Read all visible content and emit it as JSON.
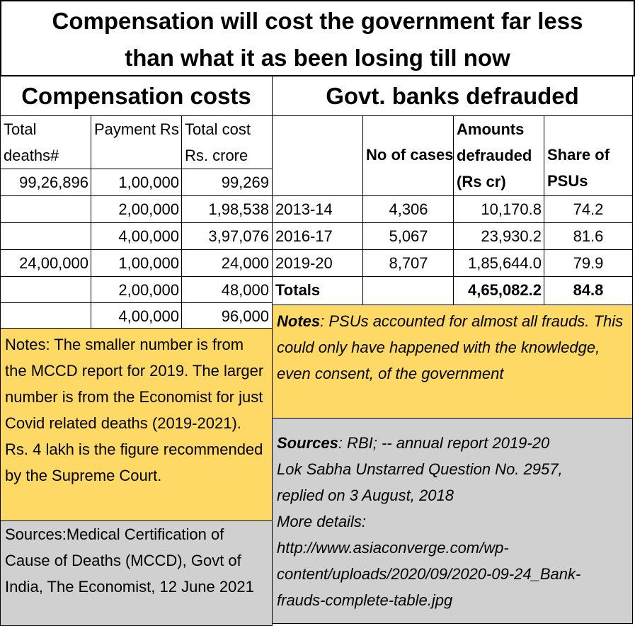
{
  "title": {
    "line1": "Compensation will cost the government far less",
    "line2": "than what it as been losing till now"
  },
  "compensation": {
    "title": "Compensation costs",
    "headers": [
      "Total deaths#",
      "Payment Rs",
      "Total cost Rs.  crore"
    ],
    "rows": [
      [
        "99,26,896",
        "1,00,000",
        "99,269"
      ],
      [
        "",
        "2,00,000",
        "1,98,538"
      ],
      [
        "",
        "4,00,000",
        "3,97,076"
      ],
      [
        "24,00,000",
        "1,00,000",
        "24,000"
      ],
      [
        "",
        "2,00,000",
        "48,000"
      ],
      [
        "",
        "4,00,000",
        "96,000"
      ]
    ],
    "notes": "Notes: The smaller number is from the MCCD report for 2019. The larger number is from the Economist for just Covid related deaths (2019-2021). Rs. 4 lakh is the figure recommended by the Supreme Court.",
    "sources": "Sources:Medical Certification of Cause of Deaths (MCCD), Govt of India, The Economist, 12 June 2021"
  },
  "banks": {
    "title": "Govt. banks defrauded",
    "headers": [
      "",
      "No of cases",
      "Amounts defrauded (Rs cr)",
      "Share of PSUs"
    ],
    "rows": [
      [
        "2013-14",
        "4,306",
        "10,170.8",
        "74.2"
      ],
      [
        "2016-17",
        "5,067",
        "23,930.2",
        "81.6"
      ],
      [
        "2019-20",
        "8,707",
        "1,85,644.0",
        "79.9"
      ]
    ],
    "totals": [
      "Totals",
      "",
      "4,65,082.2",
      "84.8"
    ],
    "notes_label": "Notes",
    "notes_text": ":  PSUs accounted for almost all frauds. This could only have happened with the knowledge, even consent, of the government",
    "sources_label": "Sources",
    "sources_text": ": RBI; -- annual report 2019-20",
    "sources_lines": [
      "Lok Sabha Unstarred Question No. 2957,",
      "replied on 3 August, 2018",
      "More details:",
      "http://www.asiaconverge.com/wp-",
      "content/uploads/2020/09/2020-09-24_Bank-",
      "frauds-complete-table.jpg"
    ]
  },
  "colors": {
    "notes_bg": "#ffd966",
    "sources_bg": "#d0d0d0",
    "border": "#000000"
  },
  "chart_data": {
    "type": "table",
    "tables": [
      {
        "title": "Compensation costs",
        "columns": [
          "Total deaths#",
          "Payment Rs",
          "Total cost Rs.  crore"
        ],
        "rows": [
          [
            "99,26,896",
            "1,00,000",
            "99,269"
          ],
          [
            "",
            "2,00,000",
            "1,98,538"
          ],
          [
            "",
            "4,00,000",
            "3,97,076"
          ],
          [
            "24,00,000",
            "1,00,000",
            "24,000"
          ],
          [
            "",
            "2,00,000",
            "48,000"
          ],
          [
            "",
            "4,00,000",
            "96,000"
          ]
        ]
      },
      {
        "title": "Govt. banks defrauded",
        "columns": [
          "",
          "No of cases",
          "Amounts defrauded (Rs cr)",
          "Share of PSUs"
        ],
        "rows": [
          [
            "2013-14",
            "4,306",
            "10,170.8",
            "74.2"
          ],
          [
            "2016-17",
            "5,067",
            "23,930.2",
            "81.6"
          ],
          [
            "2019-20",
            "8,707",
            "1,85,644.0",
            "79.9"
          ],
          [
            "Totals",
            "",
            "4,65,082.2",
            "84.8"
          ]
        ]
      }
    ]
  }
}
